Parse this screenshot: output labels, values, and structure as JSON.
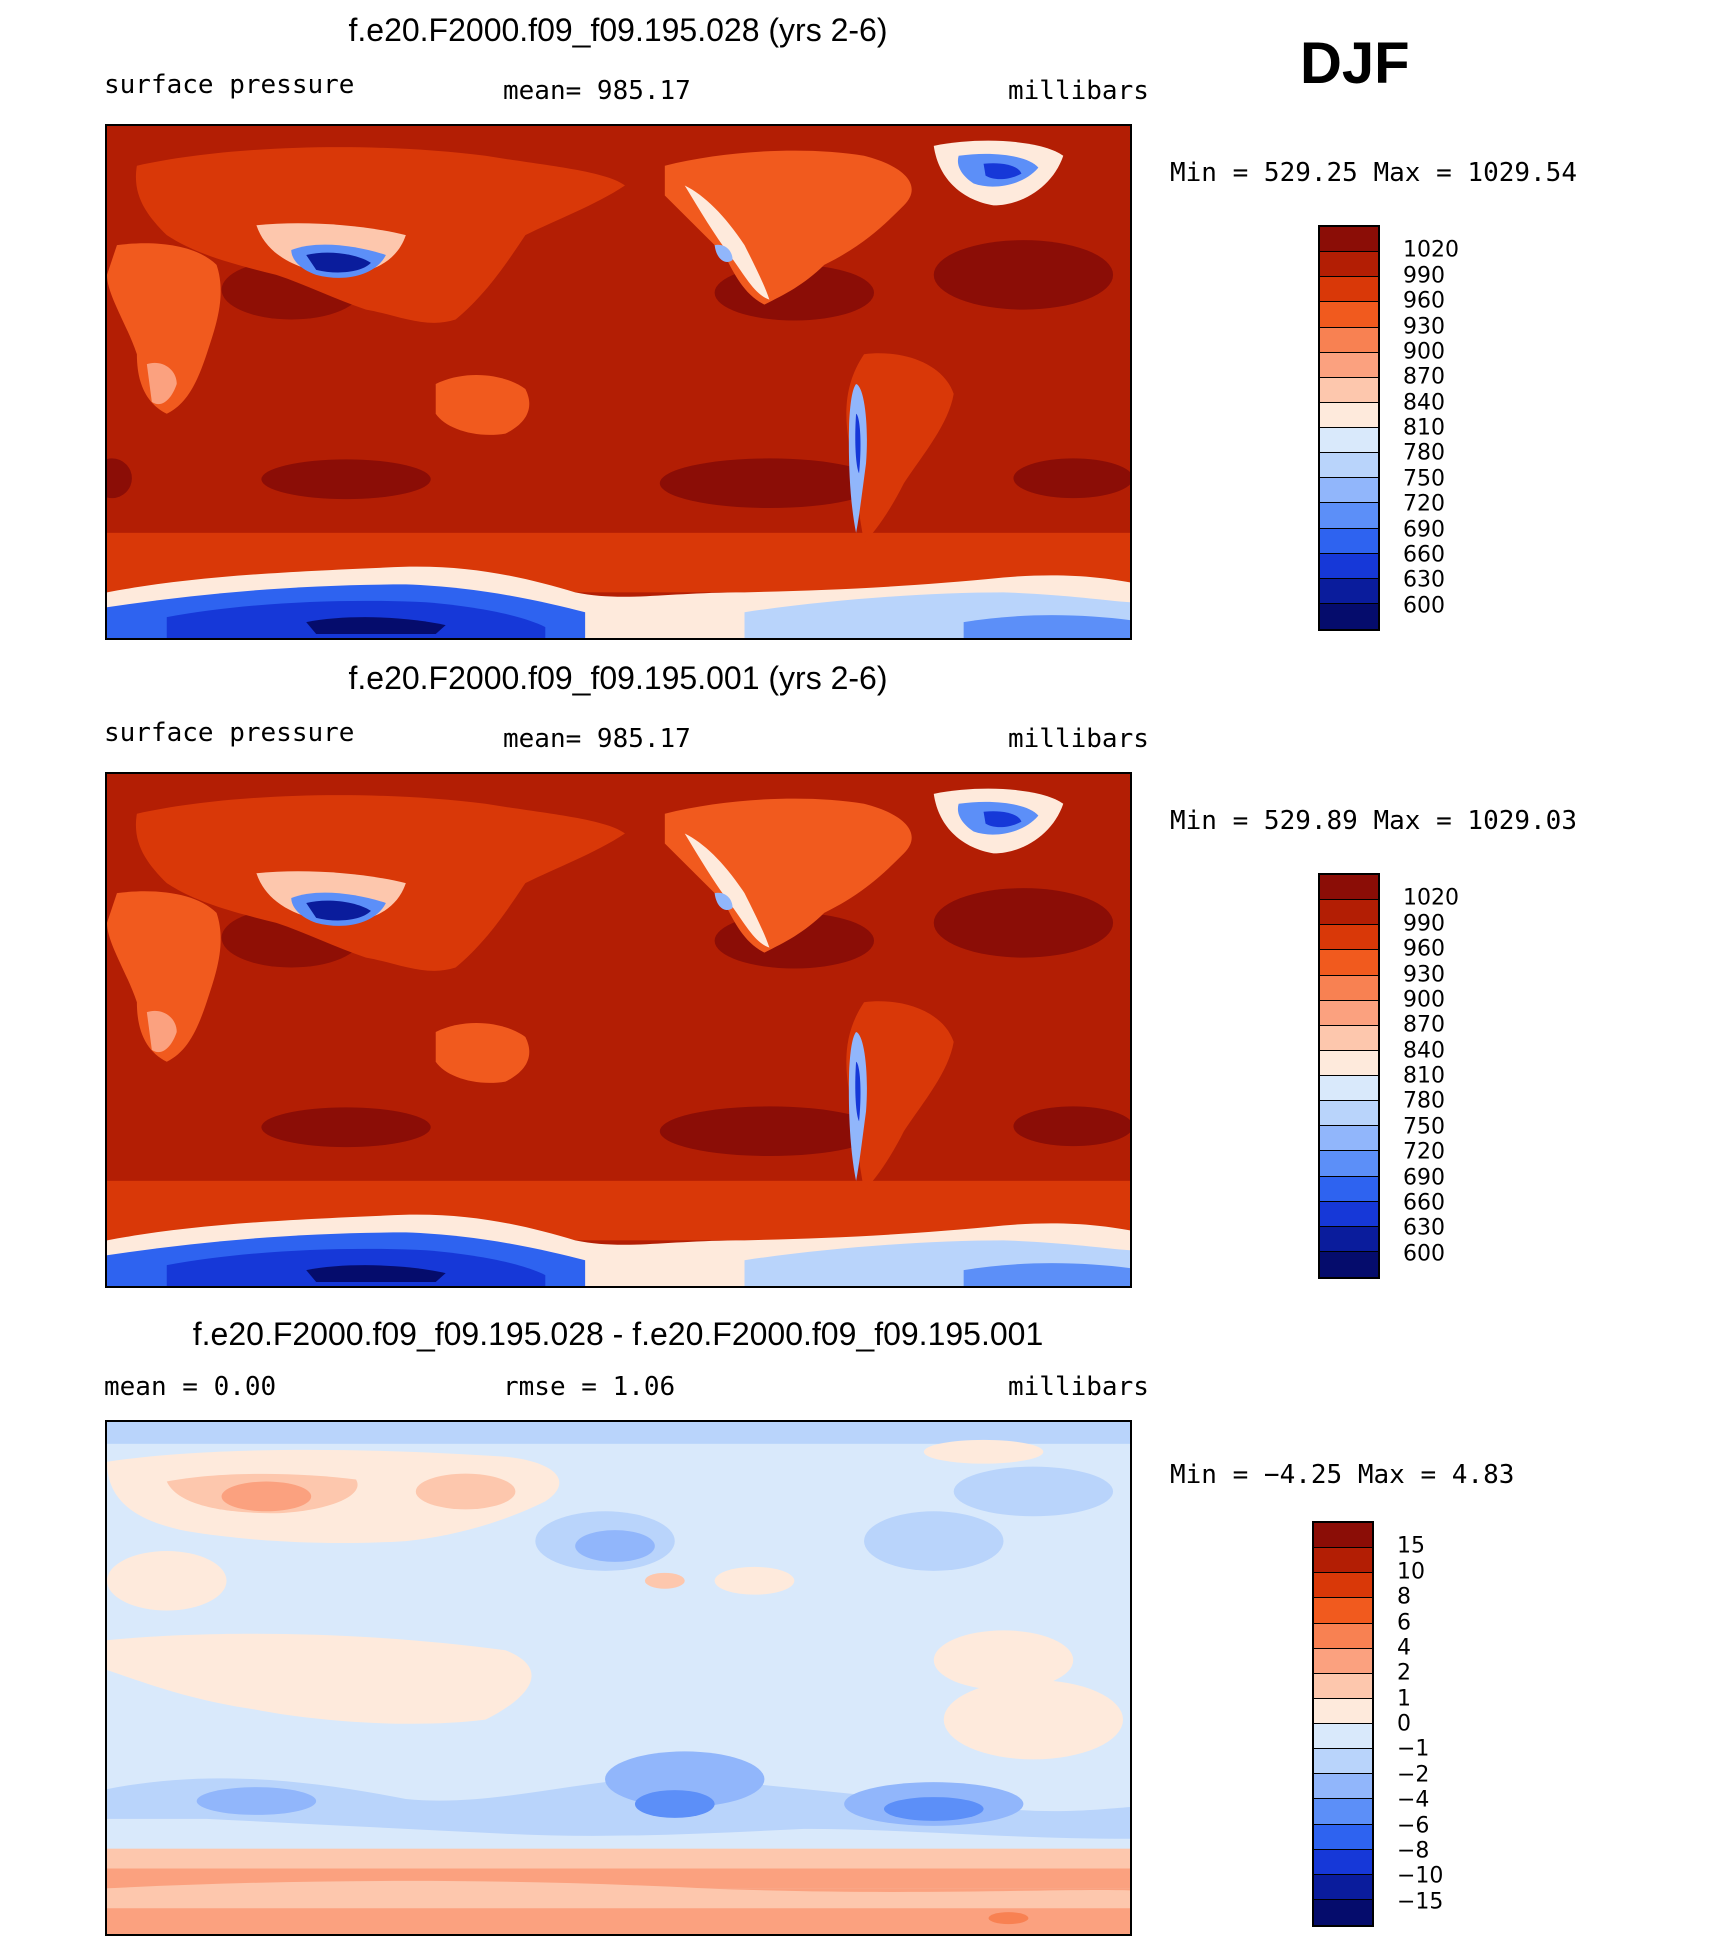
{
  "season": "DJF",
  "panels": [
    {
      "title": "f.e20.F2000.f09_f09.195.028 (yrs 2-6)",
      "left_label": "surface pressure",
      "center_label": "mean= 985.17",
      "right_label": "millibars",
      "stat_line": "Min =  529.25 Max =  1029.54",
      "colorbar_labels": [
        "1020",
        "990",
        "960",
        "930",
        "900",
        "870",
        "840",
        "810",
        "780",
        "750",
        "720",
        "690",
        "660",
        "630",
        "600"
      ]
    },
    {
      "title": "f.e20.F2000.f09_f09.195.001 (yrs 2-6)",
      "left_label": "surface pressure",
      "center_label": "mean= 985.17",
      "right_label": "millibars",
      "stat_line": "Min =  529.89 Max =  1029.03",
      "colorbar_labels": [
        "1020",
        "990",
        "960",
        "930",
        "900",
        "870",
        "840",
        "810",
        "780",
        "750",
        "720",
        "690",
        "660",
        "630",
        "600"
      ]
    },
    {
      "title": "f.e20.F2000.f09_f09.195.028 - f.e20.F2000.f09_f09.195.001",
      "left_label": "mean =    0.00",
      "center_label": "rmse =    1.06",
      "right_label": "millibars",
      "stat_line": "Min =  −4.25 Max =    4.83",
      "colorbar_labels": [
        "15",
        "10",
        "8",
        "6",
        "4",
        "2",
        "1",
        "0",
        "−1",
        "−2",
        "−4",
        "−6",
        "−8",
        "−10",
        "−15"
      ]
    }
  ],
  "colors": {
    "abs_scale": [
      "#8b0d06",
      "#b31e04",
      "#d93808",
      "#f15a1e",
      "#f88152",
      "#fba17f",
      "#fdc7ad",
      "#feeadc",
      "#d9e9fb",
      "#b9d4fb",
      "#91b6fb",
      "#5c8ff8",
      "#2e63f0",
      "#1638d8",
      "#0a1c9c",
      "#050c6c"
    ],
    "diff_scale": [
      "#8b0d06",
      "#b31e04",
      "#d93808",
      "#f15a1e",
      "#f88152",
      "#fba17f",
      "#fdc7ad",
      "#feeadc",
      "#d9e9fb",
      "#b9d4fb",
      "#91b6fb",
      "#5c8ff8",
      "#2e63f0",
      "#1638d8",
      "#0a1c9c",
      "#050c6c"
    ]
  },
  "chart_data": [
    {
      "type": "heatmap",
      "title": "f.e20.F2000.f09_f09.195.028 (yrs 2-6)",
      "variable": "surface pressure",
      "units": "millibars",
      "mean": 985.17,
      "min": 529.25,
      "max": 1029.54,
      "contour_levels": [
        600,
        630,
        660,
        690,
        720,
        750,
        780,
        810,
        840,
        870,
        900,
        930,
        960,
        990,
        1020
      ]
    },
    {
      "type": "heatmap",
      "title": "f.e20.F2000.f09_f09.195.001 (yrs 2-6)",
      "variable": "surface pressure",
      "units": "millibars",
      "mean": 985.17,
      "min": 529.89,
      "max": 1029.03,
      "contour_levels": [
        600,
        630,
        660,
        690,
        720,
        750,
        780,
        810,
        840,
        870,
        900,
        930,
        960,
        990,
        1020
      ]
    },
    {
      "type": "heatmap",
      "title": "f.e20.F2000.f09_f09.195.028 - f.e20.F2000.f09_f09.195.001",
      "units": "millibars",
      "mean": 0.0,
      "rmse": 1.06,
      "min": -4.25,
      "max": 4.83,
      "contour_levels": [
        -15,
        -10,
        -8,
        -6,
        -4,
        -2,
        -1,
        0,
        1,
        2,
        4,
        6,
        8,
        10,
        15
      ]
    }
  ]
}
